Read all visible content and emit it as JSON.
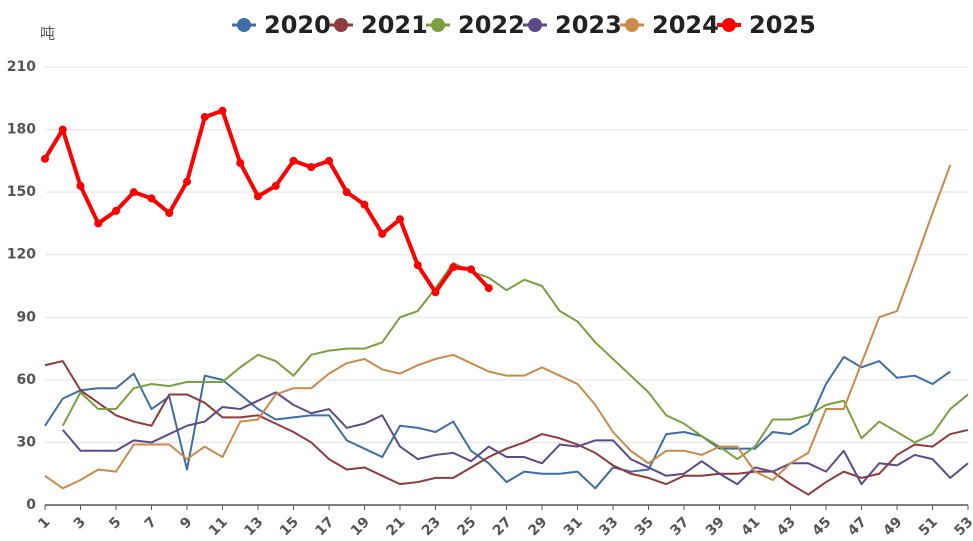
{
  "chart_data": {
    "type": "line",
    "y_label": "吨",
    "x": [
      1,
      2,
      3,
      4,
      5,
      6,
      7,
      8,
      9,
      10,
      11,
      12,
      13,
      14,
      15,
      16,
      17,
      18,
      19,
      20,
      21,
      22,
      23,
      24,
      25,
      26,
      27,
      28,
      29,
      30,
      31,
      32,
      33,
      34,
      35,
      36,
      37,
      38,
      39,
      40,
      41,
      42,
      43,
      44,
      45,
      46,
      47,
      48,
      49,
      50,
      51,
      52,
      53
    ],
    "xlim": [
      1,
      53
    ],
    "xticks": [
      1,
      3,
      5,
      7,
      9,
      11,
      13,
      15,
      17,
      19,
      21,
      23,
      25,
      27,
      29,
      31,
      33,
      35,
      37,
      39,
      41,
      43,
      45,
      47,
      49,
      51,
      53
    ],
    "ylim": [
      0,
      210
    ],
    "yticks": [
      0,
      30,
      60,
      90,
      120,
      150,
      180,
      210
    ],
    "grid": true,
    "legend": "top",
    "series": [
      {
        "name": "2020",
        "color": "#3d6ea5",
        "values": [
          38,
          51,
          55,
          56,
          56,
          63,
          46,
          52,
          17,
          62,
          60,
          53,
          46,
          41,
          42,
          43,
          43,
          31,
          27,
          23,
          38,
          37,
          35,
          40,
          26,
          20,
          11,
          16,
          15,
          15,
          16,
          8,
          18,
          16,
          17,
          34,
          35,
          33,
          27,
          27,
          27,
          35,
          34,
          39,
          58,
          71,
          66,
          69,
          61,
          62,
          58,
          64,
          null
        ]
      },
      {
        "name": "2021",
        "color": "#8e3b3b",
        "values": [
          67,
          69,
          55,
          49,
          43,
          40,
          38,
          53,
          53,
          49,
          42,
          42,
          43,
          39,
          35,
          30,
          22,
          17,
          18,
          14,
          10,
          11,
          13,
          13,
          18,
          23,
          27,
          30,
          34,
          32,
          29,
          25,
          19,
          15,
          13,
          10,
          14,
          14,
          15,
          15,
          16,
          16,
          10,
          5,
          11,
          16,
          13,
          15,
          24,
          29,
          28,
          34,
          36
        ]
      },
      {
        "name": "2022",
        "color": "#7aa040",
        "values": [
          null,
          38,
          54,
          46,
          46,
          56,
          58,
          57,
          59,
          59,
          59,
          66,
          72,
          69,
          62,
          72,
          74,
          75,
          75,
          78,
          90,
          93,
          104,
          116,
          112,
          109,
          103,
          108,
          105,
          93,
          88,
          78,
          70,
          62,
          54,
          43,
          39,
          33,
          28,
          22,
          28,
          41,
          41,
          43,
          48,
          50,
          32,
          40,
          35,
          30,
          34,
          46,
          53
        ]
      },
      {
        "name": "2023",
        "color": "#5d4a8a",
        "values": [
          null,
          36,
          26,
          26,
          26,
          31,
          30,
          34,
          38,
          40,
          47,
          46,
          50,
          54,
          48,
          44,
          46,
          37,
          39,
          43,
          28,
          22,
          24,
          25,
          21,
          28,
          23,
          23,
          20,
          29,
          28,
          31,
          31,
          22,
          18,
          14,
          15,
          21,
          15,
          10,
          18,
          16,
          20,
          20,
          16,
          26,
          10,
          20,
          19,
          24,
          22,
          13,
          20
        ]
      },
      {
        "name": "2024",
        "color": "#c98a4a",
        "values": [
          14,
          8,
          12,
          17,
          16,
          29,
          29,
          29,
          22,
          28,
          23,
          40,
          41,
          53,
          56,
          56,
          63,
          68,
          70,
          65,
          63,
          67,
          70,
          72,
          68,
          64,
          62,
          62,
          66,
          62,
          58,
          48,
          35,
          26,
          20,
          26,
          26,
          24,
          28,
          28,
          16,
          12,
          20,
          25,
          46,
          46,
          68,
          90,
          93,
          116,
          140,
          163,
          null
        ]
      },
      {
        "name": "2025",
        "color": "#ff0000",
        "values": [
          166,
          180,
          153,
          135,
          141,
          150,
          147,
          140,
          155,
          186,
          189,
          164,
          148,
          153,
          165,
          162,
          165,
          150,
          144,
          130,
          137,
          115,
          102,
          114,
          113,
          104,
          null,
          null,
          null,
          null,
          null,
          null,
          null,
          null,
          null,
          null,
          null,
          null,
          null,
          null,
          null,
          null,
          null,
          null,
          null,
          null,
          null,
          null,
          null,
          null,
          null,
          null,
          null
        ]
      }
    ]
  }
}
